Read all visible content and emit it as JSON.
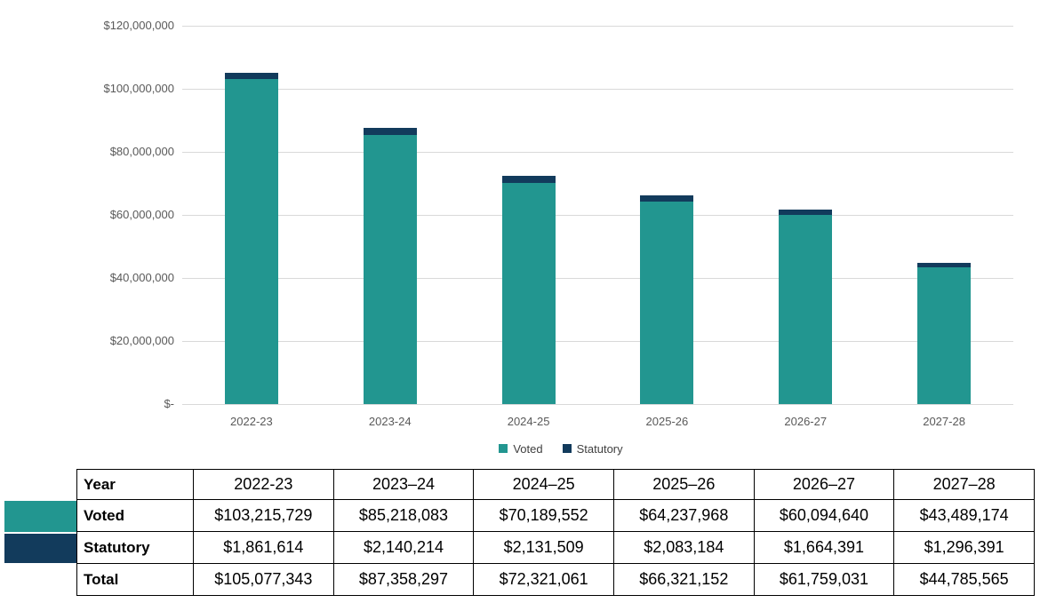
{
  "chart_data": {
    "type": "bar",
    "stacked": true,
    "title": "",
    "xlabel": "",
    "ylabel": "",
    "categories": [
      "2022-23",
      "2023-24",
      "2024-25",
      "2025-26",
      "2026-27",
      "2027-28"
    ],
    "series": [
      {
        "name": "Voted",
        "color": "#229690",
        "values": [
          103215729,
          85218083,
          70189552,
          64237968,
          60094640,
          43489174
        ]
      },
      {
        "name": "Statutory",
        "color": "#123B5C",
        "values": [
          1861614,
          2140214,
          2131509,
          2083184,
          1664391,
          1296391
        ]
      }
    ],
    "totals": [
      105077343,
      87358297,
      72321061,
      66321152,
      61759031,
      44785565
    ],
    "ylim": [
      0,
      120000000
    ],
    "ytick_step": 20000000,
    "ytick_labels": [
      "$120,000,000",
      "$100,000,000",
      "$80,000,000",
      "$60,000,000",
      "$40,000,000",
      "$20,000,000",
      "$-"
    ],
    "grid": true,
    "legend_position": "bottom"
  },
  "legend": {
    "items": [
      {
        "label": "Voted",
        "color": "#229690"
      },
      {
        "label": "Statutory",
        "color": "#123B5C"
      }
    ]
  },
  "table": {
    "header": [
      "Year",
      "2022-23",
      "2023–24",
      "2024–25",
      "2025–26",
      "2026–27",
      "2027–28"
    ],
    "rows": [
      {
        "label": "Voted",
        "swatch": "#229690",
        "values": [
          "$103,215,729",
          "$85,218,083",
          "$70,189,552",
          "$64,237,968",
          "$60,094,640",
          "$43,489,174"
        ]
      },
      {
        "label": "Statutory",
        "swatch": "#123B5C",
        "values": [
          "$1,861,614",
          "$2,140,214",
          "$2,131,509",
          "$2,083,184",
          "$1,664,391",
          "$1,296,391"
        ]
      },
      {
        "label": "Total",
        "swatch": null,
        "values": [
          "$105,077,343",
          "$87,358,297",
          "$72,321,061",
          "$66,321,152",
          "$61,759,031",
          "$44,785,565"
        ]
      }
    ]
  },
  "colors": {
    "voted": "#229690",
    "statutory": "#123B5C",
    "axis_text": "#595959",
    "gridline": "#D9D9D9",
    "table_border": "#000000",
    "background": "#FFFFFF"
  }
}
